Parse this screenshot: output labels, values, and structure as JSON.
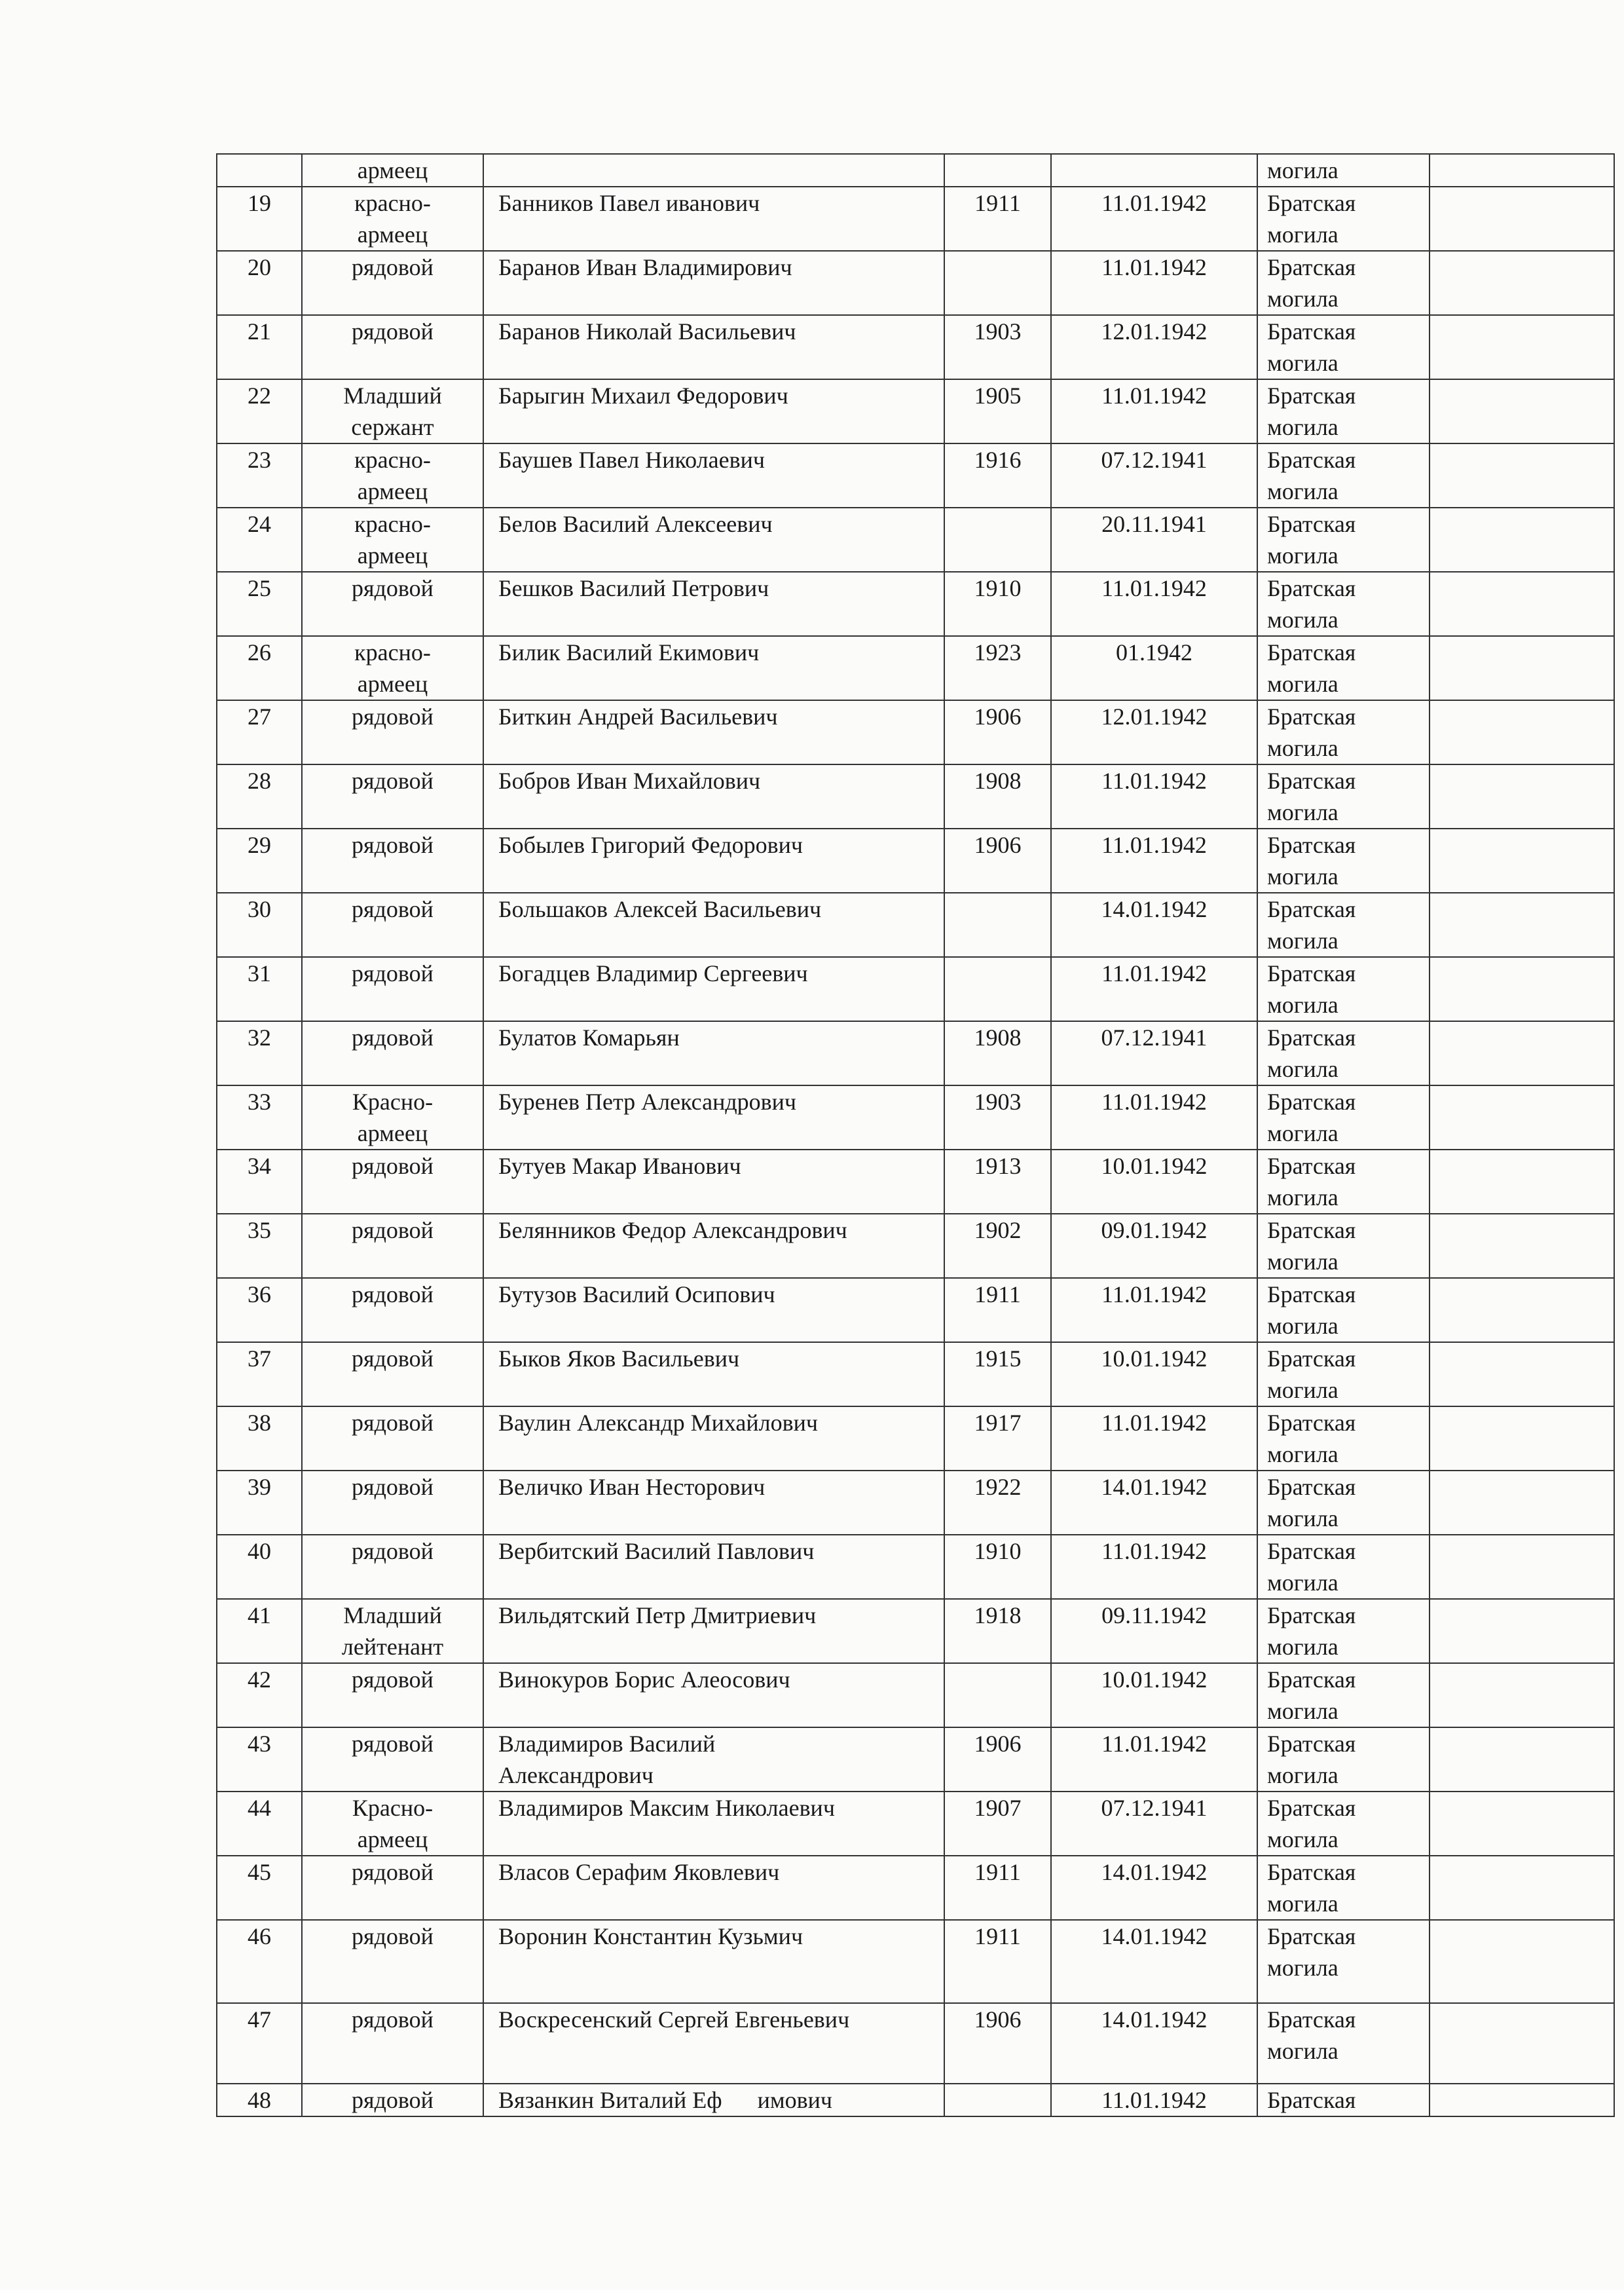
{
  "document": {
    "rows": [
      {
        "num": "",
        "rank": "армеец",
        "name": "",
        "year": "",
        "date": "",
        "burial": "могила",
        "note": ""
      },
      {
        "num": "19",
        "rank": "красно-\nармеец",
        "name": "Банников Павел иванович",
        "year": "1911",
        "date": "11.01.1942",
        "burial": "Братская\nмогила",
        "note": ""
      },
      {
        "num": "20",
        "rank": "рядовой",
        "name": "Баранов Иван Владимирович",
        "year": "",
        "date": "11.01.1942",
        "burial": "Братская\nмогила",
        "note": ""
      },
      {
        "num": "21",
        "rank": "рядовой",
        "name": "Баранов Николай Васильевич",
        "year": "1903",
        "date": "12.01.1942",
        "burial": "Братская\nмогила",
        "note": ""
      },
      {
        "num": "22",
        "rank": "Младший\nсержант",
        "name": "Барыгин Михаил Федорович",
        "year": "1905",
        "date": "11.01.1942",
        "burial": "Братская\nмогила",
        "note": ""
      },
      {
        "num": "23",
        "rank": "красно-\nармеец",
        "name": "Баушев Павел Николаевич",
        "year": "1916",
        "date": "07.12.1941",
        "burial": "Братская\nмогила",
        "note": ""
      },
      {
        "num": "24",
        "rank": "красно-\nармеец",
        "name": "Белов Василий Алексеевич",
        "year": "",
        "date": "20.11.1941",
        "burial": "Братская\nмогила",
        "note": ""
      },
      {
        "num": "25",
        "rank": "рядовой",
        "name": "Бешков Василий Петрович",
        "year": "1910",
        "date": "11.01.1942",
        "burial": "Братская\nмогила",
        "note": ""
      },
      {
        "num": "26",
        "rank": "красно-\nармеец",
        "name": "Билик Василий Екимович",
        "year": "1923",
        "date": "01.1942",
        "burial": "Братская\nмогила",
        "note": ""
      },
      {
        "num": "27",
        "rank": "рядовой",
        "name": "Биткин Андрей Васильевич",
        "year": "1906",
        "date": "12.01.1942",
        "burial": "Братская\nмогила",
        "note": ""
      },
      {
        "num": "28",
        "rank": "рядовой",
        "name": "Бобров Иван Михайлович",
        "year": "1908",
        "date": "11.01.1942",
        "burial": "Братская\nмогила",
        "note": ""
      },
      {
        "num": "29",
        "rank": "рядовой",
        "name": "Бобылев Григорий Федорович",
        "year": "1906",
        "date": "11.01.1942",
        "burial": "Братская\nмогила",
        "note": ""
      },
      {
        "num": "30",
        "rank": "рядовой",
        "name": "Большаков Алексей Васильевич",
        "year": "",
        "date": "14.01.1942",
        "burial": "Братская\nмогила",
        "note": ""
      },
      {
        "num": "31",
        "rank": "рядовой",
        "name": "Богадцев Владимир Сергеевич",
        "year": "",
        "date": "11.01.1942",
        "burial": "Братская\nмогила",
        "note": ""
      },
      {
        "num": "32",
        "rank": "рядовой",
        "name": "Булатов Комарьян",
        "year": "1908",
        "date": "07.12.1941",
        "burial": "Братская\nмогила",
        "note": ""
      },
      {
        "num": "33",
        "rank": "Красно-\nармеец",
        "name": "Буренев Петр Александрович",
        "year": "1903",
        "date": "11.01.1942",
        "burial": "Братская\nмогила",
        "note": ""
      },
      {
        "num": "34",
        "rank": "рядовой",
        "name": "Бутуев Макар Иванович",
        "year": "1913",
        "date": "10.01.1942",
        "burial": "Братская\nмогила",
        "note": ""
      },
      {
        "num": "35",
        "rank": "рядовой",
        "name": "Белянников Федор Александрович",
        "year": "1902",
        "date": "09.01.1942",
        "burial": "Братская\nмогила",
        "note": ""
      },
      {
        "num": "36",
        "rank": "рядовой",
        "name": "Бутузов Василий Осипович",
        "year": "1911",
        "date": "11.01.1942",
        "burial": "Братская\nмогила",
        "note": ""
      },
      {
        "num": "37",
        "rank": "рядовой",
        "name": "Быков Яков Васильевич",
        "year": "1915",
        "date": "10.01.1942",
        "burial": "Братская\nмогила",
        "note": ""
      },
      {
        "num": "38",
        "rank": "рядовой",
        "name": "Ваулин Александр Михайлович",
        "year": "1917",
        "date": "11.01.1942",
        "burial": "Братская\nмогила",
        "note": ""
      },
      {
        "num": "39",
        "rank": "рядовой",
        "name": "Величко Иван Несторович",
        "year": "1922",
        "date": "14.01.1942",
        "burial": "Братская\nмогила",
        "note": ""
      },
      {
        "num": "40",
        "rank": "рядовой",
        "name": "Вербитский Василий Павлович",
        "year": "1910",
        "date": "11.01.1942",
        "burial": "Братская\nмогила",
        "note": ""
      },
      {
        "num": "41",
        "rank": "Младший\nлейтенант",
        "name": "Вильдятский Петр Дмитриевич",
        "year": "1918",
        "date": "09.11.1942",
        "burial": "Братская\nмогила",
        "note": ""
      },
      {
        "num": "42",
        "rank": "рядовой",
        "name": "Винокуров Борис Алеосович",
        "year": "",
        "date": "10.01.1942",
        "burial": "Братская\nмогила",
        "note": ""
      },
      {
        "num": "43",
        "rank": "рядовой",
        "name": "Владимиров Василий\nАлександрович",
        "year": "1906",
        "date": "11.01.1942",
        "burial": "Братская\nмогила",
        "note": ""
      },
      {
        "num": "44",
        "rank": "Красно-\nармеец",
        "name": "Владимиров Максим Николаевич",
        "year": "1907",
        "date": "07.12.1941",
        "burial": "Братская\nмогила",
        "note": ""
      },
      {
        "num": "45",
        "rank": "рядовой",
        "name": "Власов Серафим Яковлевич",
        "year": "1911",
        "date": "14.01.1942",
        "burial": "Братская\nмогила",
        "note": ""
      },
      {
        "num": "46",
        "rank": "рядовой",
        "name": "Воронин Константин Кузьмич",
        "year": "1911",
        "date": "14.01.1942",
        "burial": "Братская\nмогила",
        "note": ""
      },
      {
        "num": "47",
        "rank": "рядовой",
        "name": "Воскресенский Сергей Евгеньевич",
        "year": "1906",
        "date": "14.01.1942",
        "burial": "Братская\nмогила",
        "note": ""
      },
      {
        "num": "48",
        "rank": "рядовой",
        "name": "Вязанкин Виталий Еф      имович",
        "year": "",
        "date": "11.01.1942",
        "burial": "Братская",
        "note": ""
      }
    ]
  }
}
